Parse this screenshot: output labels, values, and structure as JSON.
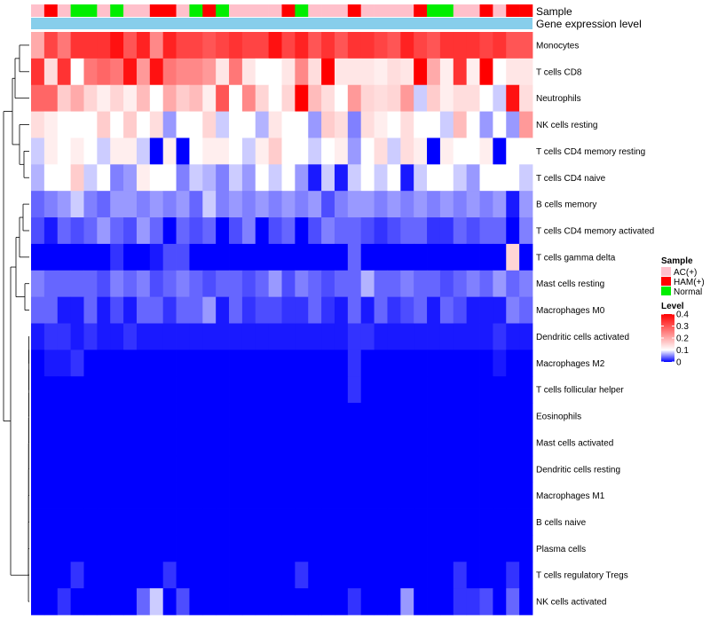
{
  "chart_data": {
    "type": "heatmap",
    "annotation_labels": [
      "Sample",
      "Gene expression level"
    ],
    "annotation_group_colors": {
      "AC(+)": "#FFC0CB",
      "HAM(+)": "#FF0000",
      "Normal": "#00EE00"
    },
    "gene_expression_color": "#87CEEB",
    "sample_groups": [
      "AC(+)",
      "HAM(+)",
      "AC(+)",
      "Normal",
      "Normal",
      "AC(+)",
      "Normal",
      "AC(+)",
      "AC(+)",
      "HAM(+)",
      "HAM(+)",
      "AC(+)",
      "Normal",
      "HAM(+)",
      "Normal",
      "AC(+)",
      "AC(+)",
      "AC(+)",
      "AC(+)",
      "HAM(+)",
      "Normal",
      "AC(+)",
      "AC(+)",
      "AC(+)",
      "HAM(+)",
      "AC(+)",
      "AC(+)",
      "AC(+)",
      "AC(+)",
      "HAM(+)",
      "Normal",
      "Normal",
      "AC(+)",
      "AC(+)",
      "HAM(+)",
      "AC(+)",
      "HAM(+)",
      "HAM(+)"
    ],
    "rows": [
      "Monocytes",
      "T cells CD8",
      "Neutrophils",
      "NK cells resting",
      "T cells CD4 memory resting",
      "T cells CD4 naive",
      "B cells memory",
      "T cells CD4 memory activated",
      "T cells gamma delta",
      "Mast cells resting",
      "Macrophages M0",
      "Dendritic cells activated",
      "Macrophages M2",
      "T cells follicular helper",
      "Eosinophils",
      "Mast cells activated",
      "Dendritic cells resting",
      "Macrophages M1",
      "B cells naive",
      "Plasma cells",
      "T cells regulatory  Tregs",
      "NK cells activated"
    ],
    "values": [
      [
        0.2,
        0.32,
        0.26,
        0.34,
        0.34,
        0.34,
        0.38,
        0.3,
        0.36,
        0.24,
        0.36,
        0.32,
        0.32,
        0.3,
        0.32,
        0.34,
        0.32,
        0.32,
        0.38,
        0.32,
        0.36,
        0.3,
        0.34,
        0.3,
        0.34,
        0.34,
        0.32,
        0.3,
        0.36,
        0.32,
        0.3,
        0.34,
        0.34,
        0.34,
        0.32,
        0.34,
        0.3,
        0.3
      ],
      [
        0.34,
        0.14,
        0.34,
        0.1,
        0.26,
        0.28,
        0.26,
        0.38,
        0.22,
        0.38,
        0.26,
        0.24,
        0.24,
        0.22,
        0.13,
        0.26,
        0.13,
        0.1,
        0.1,
        0.13,
        0.24,
        0.14,
        0.4,
        0.13,
        0.13,
        0.13,
        0.12,
        0.14,
        0.13,
        0.4,
        0.2,
        0.12,
        0.34,
        0.12,
        0.4,
        0.1,
        0.13,
        0.13
      ],
      [
        0.28,
        0.28,
        0.16,
        0.2,
        0.15,
        0.12,
        0.15,
        0.12,
        0.18,
        0.1,
        0.2,
        0.16,
        0.18,
        0.12,
        0.3,
        0.1,
        0.24,
        0.15,
        0.1,
        0.15,
        0.4,
        0.18,
        0.14,
        0.1,
        0.22,
        0.15,
        0.14,
        0.15,
        0.22,
        0.08,
        0.16,
        0.12,
        0.14,
        0.14,
        0.1,
        0.08,
        0.38,
        0.14
      ],
      [
        0.14,
        0.12,
        0.1,
        0.1,
        0.1,
        0.16,
        0.1,
        0.16,
        0.1,
        0.14,
        0.06,
        0.1,
        0.1,
        0.15,
        0.08,
        0.1,
        0.1,
        0.07,
        0.13,
        0.1,
        0.1,
        0.06,
        0.16,
        0.14,
        0.05,
        0.14,
        0.12,
        0.1,
        0.14,
        0.1,
        0.1,
        0.08,
        0.18,
        0.1,
        0.06,
        0.1,
        0.06,
        0.22
      ],
      [
        0.08,
        0.12,
        0.1,
        0.12,
        0.1,
        0.08,
        0.12,
        0.12,
        0.08,
        0.0,
        0.12,
        0.0,
        0.1,
        0.12,
        0.12,
        0.1,
        0.08,
        0.12,
        0.16,
        0.1,
        0.1,
        0.08,
        0.1,
        0.12,
        0.06,
        0.1,
        0.14,
        0.08,
        0.14,
        0.12,
        0.0,
        0.12,
        0.1,
        0.1,
        0.12,
        0.0,
        0.1,
        0.1
      ],
      [
        0.07,
        0.1,
        0.1,
        0.16,
        0.08,
        0.1,
        0.05,
        0.06,
        0.12,
        0.1,
        0.1,
        0.05,
        0.08,
        0.07,
        0.05,
        0.08,
        0.06,
        0.1,
        0.08,
        0.1,
        0.06,
        0.01,
        0.08,
        0.01,
        0.08,
        0.1,
        0.08,
        0.1,
        0.01,
        0.08,
        0.1,
        0.1,
        0.08,
        0.06,
        0.1,
        0.1,
        0.1,
        0.08
      ],
      [
        0.04,
        0.05,
        0.06,
        0.08,
        0.05,
        0.04,
        0.06,
        0.06,
        0.05,
        0.06,
        0.05,
        0.06,
        0.04,
        0.08,
        0.05,
        0.06,
        0.05,
        0.06,
        0.05,
        0.06,
        0.05,
        0.06,
        0.03,
        0.05,
        0.06,
        0.06,
        0.05,
        0.06,
        0.05,
        0.06,
        0.05,
        0.06,
        0.05,
        0.06,
        0.05,
        0.06,
        0.01,
        0.06
      ],
      [
        0.03,
        0.01,
        0.04,
        0.03,
        0.04,
        0.06,
        0.04,
        0.03,
        0.06,
        0.04,
        0.0,
        0.04,
        0.03,
        0.04,
        0.0,
        0.03,
        0.05,
        0.0,
        0.03,
        0.04,
        0.0,
        0.03,
        0.05,
        0.04,
        0.04,
        0.03,
        0.02,
        0.03,
        0.04,
        0.04,
        0.02,
        0.02,
        0.04,
        0.03,
        0.04,
        0.04,
        0.0,
        0.05
      ],
      [
        0.0,
        0.0,
        0.0,
        0.0,
        0.0,
        0.0,
        0.02,
        0.0,
        0.0,
        0.01,
        0.03,
        0.03,
        0.0,
        0.0,
        0.0,
        0.0,
        0.0,
        0.0,
        0.0,
        0.0,
        0.0,
        0.0,
        0.0,
        0.0,
        0.04,
        0.0,
        0.0,
        0.0,
        0.0,
        0.0,
        0.0,
        0.0,
        0.0,
        0.0,
        0.0,
        0.0,
        0.15,
        0.0
      ],
      [
        0.05,
        0.04,
        0.04,
        0.04,
        0.04,
        0.03,
        0.05,
        0.04,
        0.05,
        0.03,
        0.04,
        0.05,
        0.04,
        0.03,
        0.04,
        0.04,
        0.03,
        0.04,
        0.06,
        0.03,
        0.05,
        0.04,
        0.03,
        0.04,
        0.04,
        0.07,
        0.04,
        0.04,
        0.05,
        0.04,
        0.04,
        0.03,
        0.04,
        0.05,
        0.04,
        0.06,
        0.04,
        0.05
      ],
      [
        0.04,
        0.04,
        0.01,
        0.01,
        0.04,
        0.01,
        0.03,
        0.01,
        0.04,
        0.04,
        0.02,
        0.04,
        0.04,
        0.06,
        0.01,
        0.04,
        0.02,
        0.03,
        0.03,
        0.02,
        0.02,
        0.04,
        0.02,
        0.01,
        0.04,
        0.01,
        0.04,
        0.02,
        0.03,
        0.04,
        0.01,
        0.04,
        0.03,
        0.01,
        0.01,
        0.01,
        0.05,
        0.04
      ],
      [
        0.01,
        0.02,
        0.02,
        0.01,
        0.02,
        0.01,
        0.01,
        0.02,
        0.01,
        0.01,
        0.01,
        0.01,
        0.01,
        0.01,
        0.01,
        0.01,
        0.01,
        0.01,
        0.01,
        0.01,
        0.01,
        0.01,
        0.01,
        0.01,
        0.02,
        0.02,
        0.01,
        0.01,
        0.01,
        0.01,
        0.01,
        0.01,
        0.01,
        0.01,
        0.01,
        0.02,
        0.01,
        0.01
      ],
      [
        0.0,
        0.01,
        0.01,
        0.02,
        0.0,
        0.0,
        0.0,
        0.0,
        0.0,
        0.0,
        0.0,
        0.0,
        0.0,
        0.0,
        0.0,
        0.0,
        0.0,
        0.0,
        0.0,
        0.0,
        0.0,
        0.0,
        0.0,
        0.0,
        0.02,
        0.0,
        0.0,
        0.0,
        0.0,
        0.0,
        0.0,
        0.0,
        0.0,
        0.0,
        0.0,
        0.01,
        0.0,
        0.0
      ],
      [
        0.0,
        0.0,
        0.0,
        0.0,
        0.0,
        0.0,
        0.0,
        0.0,
        0.0,
        0.0,
        0.0,
        0.0,
        0.0,
        0.0,
        0.0,
        0.0,
        0.0,
        0.0,
        0.0,
        0.0,
        0.0,
        0.0,
        0.0,
        0.0,
        0.02,
        0.0,
        0.0,
        0.0,
        0.0,
        0.0,
        0.0,
        0.0,
        0.0,
        0.0,
        0.0,
        0.0,
        0.0,
        0.0
      ],
      [
        0.0,
        0.0,
        0.0,
        0.0,
        0.0,
        0.0,
        0.0,
        0.0,
        0.0,
        0.0,
        0.0,
        0.0,
        0.0,
        0.0,
        0.0,
        0.0,
        0.0,
        0.0,
        0.0,
        0.0,
        0.0,
        0.0,
        0.0,
        0.0,
        0.0,
        0.0,
        0.0,
        0.0,
        0.0,
        0.0,
        0.0,
        0.0,
        0.0,
        0.0,
        0.0,
        0.0,
        0.0,
        0.0
      ],
      [
        0.0,
        0.0,
        0.0,
        0.0,
        0.0,
        0.0,
        0.0,
        0.0,
        0.0,
        0.0,
        0.0,
        0.0,
        0.0,
        0.0,
        0.0,
        0.0,
        0.0,
        0.0,
        0.0,
        0.0,
        0.0,
        0.0,
        0.0,
        0.0,
        0.0,
        0.0,
        0.0,
        0.0,
        0.0,
        0.0,
        0.0,
        0.0,
        0.0,
        0.0,
        0.0,
        0.0,
        0.0,
        0.0
      ],
      [
        0.0,
        0.0,
        0.0,
        0.0,
        0.0,
        0.0,
        0.0,
        0.0,
        0.0,
        0.0,
        0.0,
        0.0,
        0.0,
        0.0,
        0.0,
        0.0,
        0.0,
        0.0,
        0.0,
        0.0,
        0.0,
        0.0,
        0.0,
        0.0,
        0.0,
        0.0,
        0.0,
        0.0,
        0.0,
        0.0,
        0.0,
        0.0,
        0.0,
        0.0,
        0.0,
        0.0,
        0.0,
        0.0
      ],
      [
        0.0,
        0.0,
        0.0,
        0.0,
        0.0,
        0.0,
        0.0,
        0.0,
        0.0,
        0.0,
        0.0,
        0.0,
        0.0,
        0.0,
        0.0,
        0.0,
        0.0,
        0.0,
        0.0,
        0.0,
        0.0,
        0.0,
        0.0,
        0.0,
        0.0,
        0.0,
        0.0,
        0.0,
        0.0,
        0.0,
        0.0,
        0.0,
        0.0,
        0.0,
        0.0,
        0.0,
        0.0,
        0.0
      ],
      [
        0.0,
        0.0,
        0.0,
        0.0,
        0.0,
        0.0,
        0.0,
        0.0,
        0.0,
        0.0,
        0.0,
        0.0,
        0.0,
        0.0,
        0.0,
        0.0,
        0.0,
        0.0,
        0.0,
        0.0,
        0.0,
        0.0,
        0.0,
        0.0,
        0.0,
        0.0,
        0.0,
        0.0,
        0.0,
        0.0,
        0.0,
        0.0,
        0.0,
        0.0,
        0.0,
        0.0,
        0.0,
        0.0
      ],
      [
        0.0,
        0.0,
        0.0,
        0.0,
        0.0,
        0.0,
        0.0,
        0.0,
        0.0,
        0.0,
        0.0,
        0.0,
        0.0,
        0.0,
        0.0,
        0.0,
        0.0,
        0.0,
        0.0,
        0.0,
        0.0,
        0.0,
        0.0,
        0.0,
        0.0,
        0.0,
        0.0,
        0.0,
        0.0,
        0.0,
        0.0,
        0.0,
        0.0,
        0.0,
        0.0,
        0.0,
        0.0,
        0.0
      ],
      [
        0.0,
        0.0,
        0.0,
        0.02,
        0.0,
        0.0,
        0.0,
        0.0,
        0.0,
        0.0,
        0.02,
        0.0,
        0.0,
        0.0,
        0.0,
        0.0,
        0.0,
        0.0,
        0.0,
        0.0,
        0.02,
        0.0,
        0.0,
        0.0,
        0.0,
        0.0,
        0.0,
        0.0,
        0.0,
        0.0,
        0.0,
        0.0,
        0.02,
        0.0,
        0.0,
        0.0,
        0.02,
        0.0
      ],
      [
        0.0,
        0.0,
        0.02,
        0.0,
        0.0,
        0.0,
        0.0,
        0.0,
        0.04,
        0.08,
        0.0,
        0.03,
        0.0,
        0.0,
        0.0,
        0.0,
        0.0,
        0.0,
        0.0,
        0.0,
        0.0,
        0.0,
        0.0,
        0.0,
        0.02,
        0.0,
        0.0,
        0.0,
        0.06,
        0.0,
        0.0,
        0.0,
        0.02,
        0.02,
        0.03,
        0.0,
        0.04,
        0.0
      ]
    ],
    "legend_sample_title": "Sample",
    "legend_sample_entries": [
      "AC(+)",
      "HAM(+)",
      "Normal"
    ],
    "legend_level_title": "Level",
    "legend_level_ticks": [
      "0.4",
      "0.3",
      "0.2",
      "0.1",
      "0"
    ],
    "legend_level_tick_values": [
      0.4,
      0.3,
      0.2,
      0.1,
      0
    ],
    "color_scale": {
      "min": 0,
      "mid": 0.1,
      "max": 0.4,
      "low": "#0000FF",
      "mid_color": "#FFFFFF",
      "high": "#FF0000"
    }
  }
}
